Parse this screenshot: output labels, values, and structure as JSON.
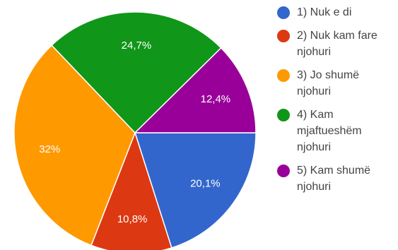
{
  "chart_data": {
    "type": "pie",
    "categories": [
      "1) Nuk e di",
      "2) Nuk kam fare njohuri",
      "3) Jo shumë njohuri",
      "4) Kam mjaftueshëm njohuri",
      "5) Kam shumë njohuri"
    ],
    "values": [
      20.1,
      10.8,
      32,
      24.7,
      12.4
    ],
    "value_labels": [
      "20,1%",
      "10,8%",
      "32%",
      "24,7%",
      "12,4%"
    ],
    "colors": [
      "#3366cc",
      "#dc3912",
      "#ff9900",
      "#109618",
      "#990099"
    ]
  }
}
